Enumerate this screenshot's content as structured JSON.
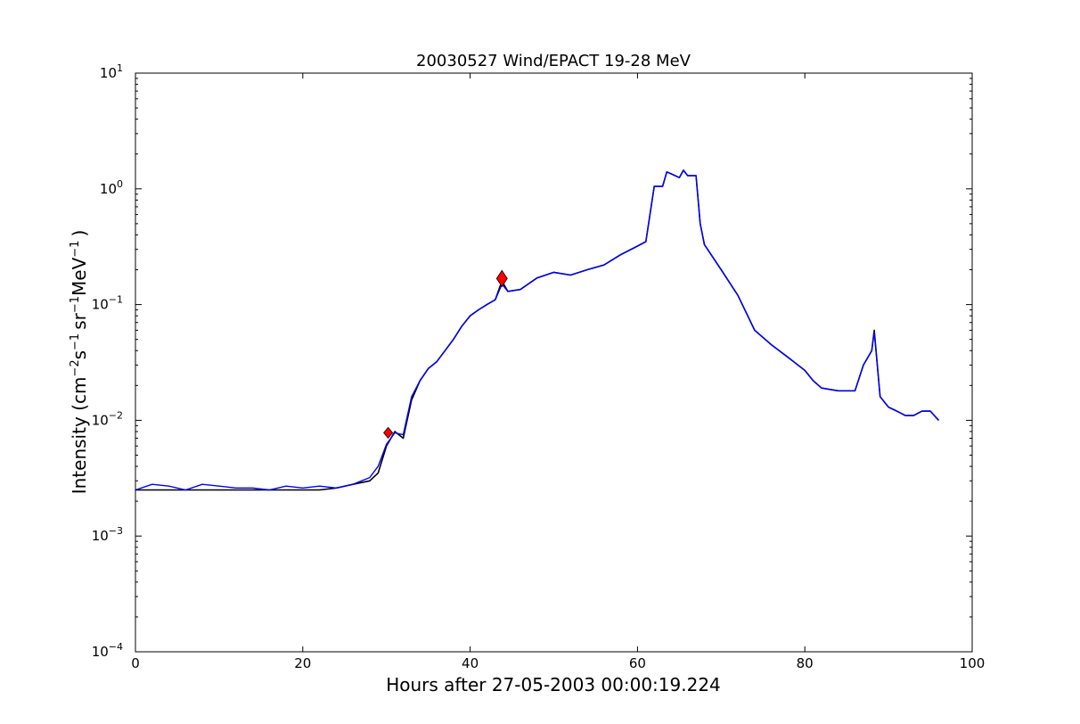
{
  "chart_data": {
    "type": "line",
    "title": "20030527 Wind/EPACT 19-28 MeV",
    "xlabel": "Hours after 27-05-2003 00:00:19.224",
    "ylabel": {
      "prefix": "Intensity (cm",
      "sup1": "−2",
      "s": "s",
      "sup2": "−1",
      "sr": "sr",
      "sup3": "−1",
      "mev": "MeV",
      "sup4": "−1",
      "suffix": ")"
    },
    "xlim": [
      0,
      100
    ],
    "ylim": [
      0.0001,
      10
    ],
    "yscale": "log",
    "grid": false,
    "x_ticks": [
      "0",
      "20",
      "40",
      "60",
      "80",
      "100"
    ],
    "y_ticks": [
      {
        "base": "10",
        "exp": "−4",
        "value": 0.0001
      },
      {
        "base": "10",
        "exp": "−3",
        "value": 0.001
      },
      {
        "base": "10",
        "exp": "−2",
        "value": 0.01
      },
      {
        "base": "10",
        "exp": "−1",
        "value": 0.1
      },
      {
        "base": "10",
        "exp": "0",
        "value": 1
      },
      {
        "base": "10",
        "exp": "1",
        "value": 10
      }
    ],
    "series": [
      {
        "color": "#000000",
        "points": [
          [
            0,
            0.0025
          ],
          [
            2,
            0.0025
          ],
          [
            4,
            0.0025
          ],
          [
            6,
            0.0025
          ],
          [
            8,
            0.0025
          ],
          [
            10,
            0.0025
          ],
          [
            12,
            0.0025
          ],
          [
            14,
            0.0025
          ],
          [
            16,
            0.0025
          ],
          [
            18,
            0.0025
          ],
          [
            20,
            0.0025
          ],
          [
            22,
            0.0025
          ],
          [
            24,
            0.0026
          ],
          [
            26,
            0.0028
          ],
          [
            28,
            0.003
          ],
          [
            29,
            0.0035
          ],
          [
            30,
            0.006
          ],
          [
            31,
            0.008
          ],
          [
            32,
            0.007
          ],
          [
            33,
            0.015
          ],
          [
            34,
            0.022
          ],
          [
            35,
            0.028
          ],
          [
            36,
            0.032
          ],
          [
            37,
            0.04
          ],
          [
            38,
            0.05
          ],
          [
            39,
            0.065
          ],
          [
            40,
            0.08
          ],
          [
            41,
            0.09
          ],
          [
            42,
            0.1
          ],
          [
            43,
            0.11
          ],
          [
            43.8,
            0.16
          ],
          [
            44.5,
            0.13
          ],
          [
            46,
            0.135
          ],
          [
            48,
            0.17
          ],
          [
            50,
            0.19
          ],
          [
            52,
            0.18
          ],
          [
            54,
            0.2
          ],
          [
            56,
            0.22
          ],
          [
            58,
            0.27
          ],
          [
            60,
            0.32
          ],
          [
            61,
            0.35
          ],
          [
            62,
            1.05
          ],
          [
            63,
            1.05
          ],
          [
            63.5,
            1.4
          ],
          [
            64,
            1.35
          ],
          [
            65,
            1.25
          ],
          [
            65.5,
            1.45
          ],
          [
            66,
            1.3
          ],
          [
            67,
            1.3
          ],
          [
            67.5,
            0.5
          ],
          [
            68,
            0.33
          ],
          [
            70,
            0.2
          ],
          [
            72,
            0.12
          ],
          [
            74,
            0.06
          ],
          [
            76,
            0.045
          ],
          [
            78,
            0.035
          ],
          [
            80,
            0.027
          ],
          [
            81,
            0.022
          ],
          [
            82,
            0.019
          ],
          [
            84,
            0.018
          ],
          [
            86,
            0.018
          ],
          [
            87,
            0.03
          ],
          [
            88,
            0.04
          ],
          [
            88.3,
            0.06
          ],
          [
            89,
            0.016
          ],
          [
            90,
            0.013
          ],
          [
            91,
            0.012
          ],
          [
            92,
            0.011
          ],
          [
            93,
            0.011
          ],
          [
            94,
            0.012
          ],
          [
            95,
            0.012
          ],
          [
            96,
            0.01
          ]
        ]
      },
      {
        "color": "#0000ff",
        "points": [
          [
            0,
            0.0025
          ],
          [
            2,
            0.0028
          ],
          [
            4,
            0.0027
          ],
          [
            6,
            0.0025
          ],
          [
            8,
            0.0028
          ],
          [
            10,
            0.0027
          ],
          [
            12,
            0.0026
          ],
          [
            14,
            0.0026
          ],
          [
            16,
            0.0025
          ],
          [
            18,
            0.0027
          ],
          [
            20,
            0.0026
          ],
          [
            22,
            0.0027
          ],
          [
            24,
            0.0026
          ],
          [
            26,
            0.0028
          ],
          [
            28,
            0.0032
          ],
          [
            29,
            0.004
          ],
          [
            30,
            0.0062
          ],
          [
            31,
            0.0078
          ],
          [
            32,
            0.0075
          ],
          [
            33,
            0.016
          ],
          [
            34,
            0.022
          ],
          [
            35,
            0.028
          ],
          [
            36,
            0.032
          ],
          [
            37,
            0.04
          ],
          [
            38,
            0.05
          ],
          [
            39,
            0.065
          ],
          [
            40,
            0.08
          ],
          [
            41,
            0.09
          ],
          [
            42,
            0.1
          ],
          [
            43,
            0.11
          ],
          [
            43.8,
            0.15
          ],
          [
            44.5,
            0.13
          ],
          [
            46,
            0.135
          ],
          [
            48,
            0.17
          ],
          [
            50,
            0.19
          ],
          [
            52,
            0.18
          ],
          [
            54,
            0.2
          ],
          [
            56,
            0.22
          ],
          [
            58,
            0.27
          ],
          [
            60,
            0.32
          ],
          [
            61,
            0.35
          ],
          [
            62,
            1.05
          ],
          [
            63,
            1.05
          ],
          [
            63.5,
            1.4
          ],
          [
            64,
            1.35
          ],
          [
            65,
            1.25
          ],
          [
            65.5,
            1.45
          ],
          [
            66,
            1.3
          ],
          [
            67,
            1.3
          ],
          [
            67.5,
            0.5
          ],
          [
            68,
            0.33
          ],
          [
            70,
            0.2
          ],
          [
            72,
            0.12
          ],
          [
            74,
            0.06
          ],
          [
            76,
            0.045
          ],
          [
            78,
            0.035
          ],
          [
            80,
            0.027
          ],
          [
            81,
            0.022
          ],
          [
            82,
            0.019
          ],
          [
            84,
            0.018
          ],
          [
            86,
            0.018
          ],
          [
            87,
            0.03
          ],
          [
            88,
            0.04
          ],
          [
            88.3,
            0.058
          ],
          [
            89,
            0.016
          ],
          [
            90,
            0.013
          ],
          [
            91,
            0.012
          ],
          [
            92,
            0.011
          ],
          [
            93,
            0.011
          ],
          [
            94,
            0.012
          ],
          [
            95,
            0.012
          ],
          [
            96,
            0.01
          ]
        ]
      }
    ],
    "markers": [
      {
        "x": 30.2,
        "y": 0.0078,
        "shape": "diamond",
        "color": "#ff0000",
        "size": "small"
      },
      {
        "x": 43.8,
        "y": 0.168,
        "shape": "diamond",
        "color": "#ff0000",
        "size": "large"
      }
    ]
  }
}
